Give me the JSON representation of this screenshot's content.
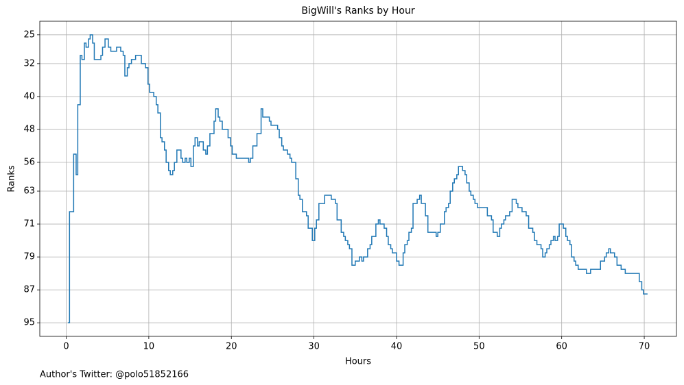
{
  "chart_data": {
    "type": "step",
    "title": "BigWill's Ranks by Hour",
    "x_label": "Hours",
    "y_label": "Ranks",
    "footer": "Author's Twitter: @polo51852166",
    "xlim": [
      -3.2,
      73.9
    ],
    "xticks": [
      0,
      10,
      20,
      30,
      40,
      50,
      60,
      70
    ],
    "ylim": [
      98.3,
      21.7
    ],
    "yticks": [
      25,
      32,
      40,
      48,
      56,
      63,
      71,
      79,
      87,
      95
    ],
    "grid": true,
    "series": [
      {
        "color": "#1f77b4",
        "x": [
          0.2,
          0.4,
          0.9,
          1.2,
          1.4,
          1.7,
          1.9,
          2.2,
          2.4,
          2.7,
          2.9,
          3.2,
          3.4,
          4.2,
          4.4,
          4.7,
          5.1,
          5.4,
          6.1,
          6.6,
          6.9,
          7.1,
          7.4,
          7.6,
          7.9,
          8.4,
          9.1,
          9.6,
          9.9,
          10.1,
          10.6,
          10.9,
          11.1,
          11.4,
          11.6,
          11.9,
          12.1,
          12.4,
          12.6,
          12.9,
          13.1,
          13.4,
          13.9,
          14.1,
          14.4,
          14.6,
          14.9,
          15.1,
          15.4,
          15.6,
          15.9,
          16.1,
          16.6,
          16.9,
          17.1,
          17.4,
          17.9,
          18.1,
          18.4,
          18.6,
          18.9,
          19.6,
          19.9,
          20.1,
          20.6,
          22.1,
          22.3,
          22.6,
          23.1,
          23.6,
          23.8,
          24.6,
          24.8,
          25.6,
          25.8,
          26.1,
          26.3,
          26.8,
          27.1,
          27.3,
          27.8,
          28.1,
          28.3,
          28.6,
          29.1,
          29.3,
          29.8,
          30.1,
          30.3,
          30.6,
          31.3,
          32.1,
          32.6,
          32.8,
          33.3,
          33.6,
          33.8,
          34.1,
          34.3,
          34.6,
          35.0,
          35.5,
          35.8,
          36.0,
          36.5,
          36.8,
          37.0,
          37.5,
          37.8,
          38.0,
          38.5,
          38.8,
          39.0,
          39.3,
          39.5,
          40.0,
          40.3,
          40.8,
          41.0,
          41.3,
          41.5,
          41.8,
          42.0,
          42.5,
          42.8,
          43.0,
          43.5,
          43.8,
          44.8,
          45.0,
          45.3,
          45.8,
          46.0,
          46.3,
          46.5,
          46.8,
          47.0,
          47.3,
          47.5,
          48.0,
          48.3,
          48.5,
          48.8,
          49.0,
          49.3,
          49.5,
          49.8,
          51.0,
          51.5,
          51.7,
          52.2,
          52.5,
          52.7,
          53.0,
          53.2,
          53.7,
          54.0,
          54.5,
          54.7,
          55.2,
          55.7,
          56.0,
          56.5,
          56.7,
          57.0,
          57.5,
          57.7,
          58.0,
          58.2,
          58.5,
          58.7,
          59.0,
          59.2,
          59.5,
          59.7,
          60.2,
          60.5,
          60.7,
          61.0,
          61.2,
          61.5,
          61.7,
          62.0,
          63.0,
          63.5,
          64.7,
          65.2,
          65.4,
          65.7,
          65.9,
          66.4,
          66.7,
          67.2,
          67.7,
          69.4,
          69.7,
          69.9,
          70.4
        ],
        "values": [
          95,
          68,
          54,
          59,
          42,
          30,
          31,
          27,
          28,
          26,
          25,
          27,
          31,
          30,
          28,
          26,
          28,
          29,
          28,
          29,
          30,
          35,
          33,
          32,
          31,
          30,
          32,
          33,
          37,
          39,
          40,
          42,
          44,
          50,
          51,
          53,
          56,
          58,
          59,
          58,
          56,
          53,
          55,
          56,
          55,
          56,
          55,
          57,
          52,
          50,
          52,
          51,
          53,
          54,
          52,
          49,
          46,
          43,
          45,
          46,
          48,
          50,
          52,
          54,
          55,
          56,
          55,
          52,
          49,
          43,
          45,
          46,
          47,
          48,
          50,
          52,
          53,
          54,
          55,
          56,
          60,
          64,
          65,
          68,
          69,
          72,
          75,
          72,
          70,
          66,
          64,
          65,
          66,
          70,
          73,
          74,
          75,
          76,
          77,
          81,
          80,
          79,
          80,
          79,
          77,
          76,
          74,
          71,
          70,
          71,
          72,
          74,
          76,
          77,
          78,
          80,
          81,
          78,
          76,
          75,
          73,
          72,
          66,
          65,
          64,
          66,
          69,
          73,
          74,
          73,
          71,
          68,
          67,
          66,
          63,
          61,
          60,
          59,
          57,
          58,
          59,
          61,
          63,
          64,
          65,
          66,
          67,
          69,
          70,
          73,
          74,
          72,
          71,
          70,
          69,
          68,
          65,
          66,
          67,
          68,
          69,
          72,
          73,
          75,
          76,
          77,
          79,
          78,
          77,
          76,
          75,
          74,
          75,
          74,
          71,
          72,
          74,
          75,
          76,
          79,
          80,
          81,
          82,
          83,
          82,
          80,
          79,
          78,
          77,
          78,
          79,
          81,
          82,
          83,
          85,
          87,
          88,
          88
        ]
      }
    ]
  }
}
